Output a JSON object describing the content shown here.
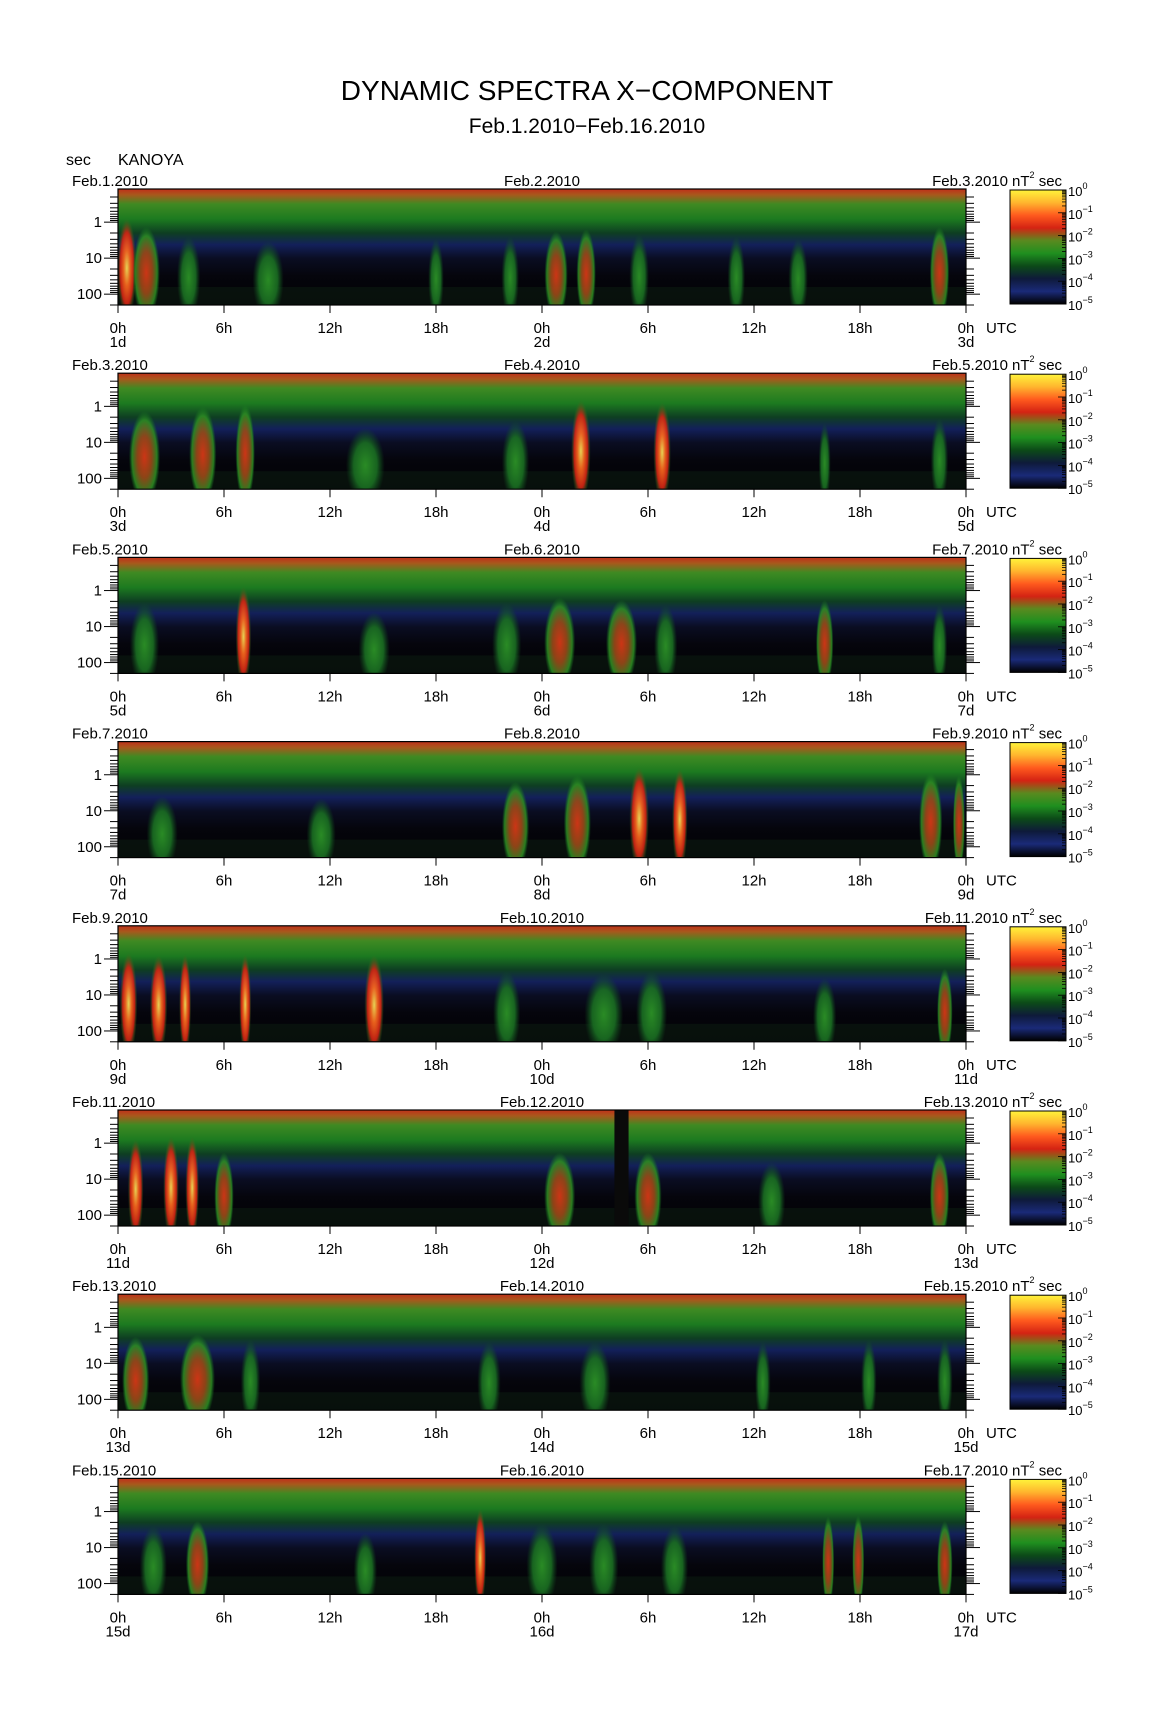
{
  "figure": {
    "title": "DYNAMIC SPECTRA X−COMPONENT",
    "subtitle": "Feb.1.2010−Feb.16.2010",
    "y_unit": "sec",
    "station": "KANOYA"
  },
  "chart_data": {
    "type": "heatmap",
    "y_axis": {
      "label": "sec",
      "scale": "log",
      "tick_labels": [
        "1",
        "10",
        "100"
      ]
    },
    "x_axis": {
      "tick_labels": [
        "0h",
        "6h",
        "12h",
        "18h",
        "0h",
        "6h",
        "12h",
        "18h",
        "0h"
      ],
      "unit_label": "UTC"
    },
    "colorbar": {
      "unit_base": "nT",
      "unit_exp": "2",
      "unit_tail": " sec",
      "scale": "log",
      "tick_bases": [
        "10",
        "10",
        "10",
        "10",
        "10",
        "10"
      ],
      "tick_exponents": [
        "0",
        "−1",
        "−2",
        "−3",
        "−4",
        "−5"
      ],
      "colors": [
        "#fff43a",
        "#ffb52e",
        "#ff5a1e",
        "#d42313",
        "#5a8a1f",
        "#1f8f1f",
        "#0c4a18",
        "#0e1a3a",
        "#1a2a78",
        "#000000"
      ]
    },
    "panels": [
      {
        "date_left": "Feb.1.2010",
        "date_mid": "Feb.2.2010",
        "date_right": "Feb.3.2010",
        "day_start": "1d",
        "day_mid": "2d",
        "day_end": "3d",
        "events": [
          [
            0.5,
            0.99,
            0.9
          ],
          [
            1.6,
            1.4,
            0.7
          ],
          [
            4.0,
            1.2,
            0.5
          ],
          [
            8.5,
            1.6,
            0.4
          ],
          [
            18.0,
            0.8,
            0.45
          ],
          [
            22.2,
            0.9,
            0.5
          ],
          [
            24.8,
            1.2,
            0.6
          ],
          [
            26.5,
            1.0,
            0.65
          ],
          [
            29.5,
            1.0,
            0.55
          ],
          [
            35.0,
            0.9,
            0.5
          ],
          [
            38.5,
            1.0,
            0.45
          ],
          [
            46.5,
            1.0,
            0.7
          ]
        ],
        "gaps": []
      },
      {
        "date_left": "Feb.3.2010",
        "date_mid": "Feb.4.2010",
        "date_right": "Feb.5.2010",
        "day_start": "3d",
        "day_mid": "4d",
        "day_end": "5d",
        "events": [
          [
            1.5,
            1.6,
            0.7
          ],
          [
            4.8,
            1.4,
            0.8
          ],
          [
            7.2,
            1.0,
            0.85
          ],
          [
            14.0,
            2.0,
            0.35
          ],
          [
            22.5,
            1.4,
            0.5
          ],
          [
            26.2,
            1.0,
            0.95
          ],
          [
            30.8,
            0.9,
            0.9
          ],
          [
            40.0,
            0.6,
            0.45
          ],
          [
            46.5,
            0.9,
            0.55
          ]
        ],
        "gaps": []
      },
      {
        "date_left": "Feb.5.2010",
        "date_mid": "Feb.6.2010",
        "date_right": "Feb.7.2010",
        "day_start": "5d",
        "day_mid": "6d",
        "day_end": "7d",
        "events": [
          [
            1.5,
            1.5,
            0.55
          ],
          [
            7.1,
            0.8,
            0.9
          ],
          [
            14.5,
            1.6,
            0.35
          ],
          [
            22.0,
            1.5,
            0.55
          ],
          [
            25.0,
            1.6,
            0.65
          ],
          [
            28.5,
            1.6,
            0.6
          ],
          [
            31.0,
            1.2,
            0.5
          ],
          [
            40.0,
            0.9,
            0.6
          ],
          [
            46.5,
            0.8,
            0.5
          ]
        ],
        "gaps": []
      },
      {
        "date_left": "Feb.7.2010",
        "date_mid": "Feb.8.2010",
        "date_right": "Feb.9.2010",
        "day_start": "7d",
        "day_mid": "8d",
        "day_end": "9d",
        "events": [
          [
            2.5,
            1.6,
            0.35
          ],
          [
            11.5,
            1.5,
            0.3
          ],
          [
            22.5,
            1.4,
            0.65
          ],
          [
            26.0,
            1.4,
            0.8
          ],
          [
            29.5,
            1.0,
            0.98
          ],
          [
            31.8,
            0.8,
            0.95
          ],
          [
            46.0,
            1.2,
            0.85
          ],
          [
            47.6,
            0.6,
            0.8
          ]
        ],
        "gaps": []
      },
      {
        "date_left": "Feb.9.2010",
        "date_mid": "Feb.10.2010",
        "date_right": "Feb.11.2010",
        "day_start": "9d",
        "day_mid": "10d",
        "day_end": "11d",
        "events": [
          [
            0.6,
            0.9,
            0.95
          ],
          [
            2.3,
            0.9,
            0.9
          ],
          [
            3.8,
            0.4,
            0.92
          ],
          [
            7.2,
            0.3,
            0.92
          ],
          [
            14.5,
            1.0,
            0.9
          ],
          [
            22.0,
            1.4,
            0.55
          ],
          [
            27.5,
            2.0,
            0.5
          ],
          [
            30.2,
            1.6,
            0.55
          ],
          [
            40.0,
            1.2,
            0.4
          ],
          [
            46.8,
            0.8,
            0.6
          ]
        ],
        "gaps": []
      },
      {
        "date_left": "Feb.11.2010",
        "date_mid": "Feb.12.2010",
        "date_right": "Feb.13.2010",
        "day_start": "11d",
        "day_mid": "12d",
        "day_end": "13d",
        "events": [
          [
            1.0,
            0.8,
            0.9
          ],
          [
            3.0,
            0.8,
            0.96
          ],
          [
            4.2,
            0.7,
            0.96
          ],
          [
            6.0,
            1.0,
            0.6
          ],
          [
            25.0,
            1.6,
            0.6
          ],
          [
            30.0,
            1.4,
            0.6
          ],
          [
            37.0,
            1.4,
            0.4
          ],
          [
            46.5,
            1.0,
            0.6
          ]
        ],
        "gaps": [
          [
            28.1,
            28.9
          ]
        ]
      },
      {
        "date_left": "Feb.13.2010",
        "date_mid": "Feb.14.2010",
        "date_right": "Feb.15.2010",
        "day_start": "13d",
        "day_mid": "14d",
        "day_end": "15d",
        "events": [
          [
            1.0,
            1.4,
            0.6
          ],
          [
            4.5,
            1.8,
            0.65
          ],
          [
            7.5,
            1.0,
            0.55
          ],
          [
            21.0,
            1.2,
            0.5
          ],
          [
            27.0,
            1.6,
            0.5
          ],
          [
            36.5,
            0.8,
            0.5
          ],
          [
            42.5,
            0.8,
            0.55
          ],
          [
            46.8,
            0.8,
            0.55
          ]
        ],
        "gaps": []
      },
      {
        "date_left": "Feb.15.2010",
        "date_mid": "Feb.16.2010",
        "date_right": "Feb.17.2010",
        "day_start": "15d",
        "day_mid": "16d",
        "day_end": "17d",
        "events": [
          [
            2.0,
            1.4,
            0.5
          ],
          [
            4.5,
            1.2,
            0.6
          ],
          [
            14.0,
            1.2,
            0.35
          ],
          [
            20.5,
            0.6,
            0.88
          ],
          [
            24.0,
            1.6,
            0.55
          ],
          [
            27.5,
            1.5,
            0.55
          ],
          [
            31.5,
            1.4,
            0.5
          ],
          [
            40.2,
            0.6,
            0.7
          ],
          [
            41.9,
            0.6,
            0.72
          ],
          [
            46.8,
            0.8,
            0.6
          ]
        ],
        "gaps": []
      }
    ]
  }
}
